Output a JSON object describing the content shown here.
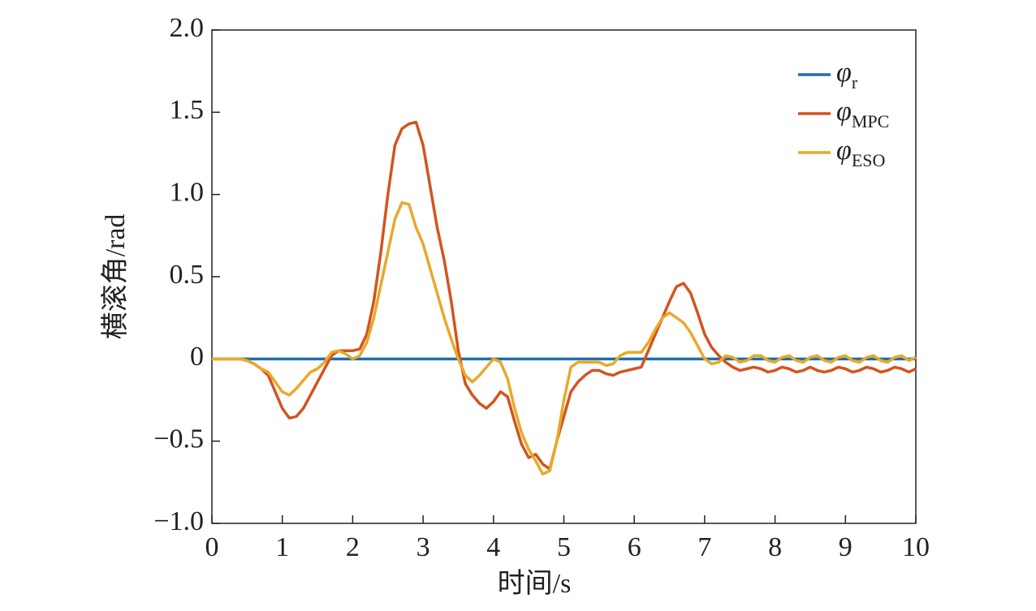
{
  "chart_data": {
    "type": "line",
    "xlabel": "时间/s",
    "ylabel": "横滚角/rad",
    "x": [
      0,
      0.1,
      0.2,
      0.3,
      0.4,
      0.5,
      0.6,
      0.7,
      0.8,
      0.9,
      1,
      1.1,
      1.2,
      1.3,
      1.4,
      1.5,
      1.6,
      1.7,
      1.8,
      1.9,
      2,
      2.1,
      2.2,
      2.3,
      2.4,
      2.5,
      2.6,
      2.7,
      2.8,
      2.9,
      3,
      3.1,
      3.2,
      3.3,
      3.4,
      3.5,
      3.6,
      3.7,
      3.8,
      3.9,
      4,
      4.1,
      4.2,
      4.3,
      4.4,
      4.5,
      4.6,
      4.7,
      4.8,
      4.9,
      5,
      5.1,
      5.2,
      5.3,
      5.4,
      5.5,
      5.6,
      5.7,
      5.8,
      5.9,
      6,
      6.1,
      6.2,
      6.3,
      6.4,
      6.5,
      6.6,
      6.7,
      6.8,
      6.9,
      7,
      7.1,
      7.2,
      7.3,
      7.4,
      7.5,
      7.6,
      7.7,
      7.8,
      7.9,
      8,
      8.1,
      8.2,
      8.3,
      8.4,
      8.5,
      8.6,
      8.7,
      8.8,
      8.9,
      9,
      9.1,
      9.2,
      9.3,
      9.4,
      9.5,
      9.6,
      9.7,
      9.8,
      9.9,
      10
    ],
    "series": [
      {
        "name": "φr",
        "color": "#1f6fb0",
        "values": [
          0,
          0,
          0,
          0,
          0,
          0,
          0,
          0,
          0,
          0,
          0,
          0,
          0,
          0,
          0,
          0,
          0,
          0,
          0,
          0,
          0,
          0,
          0,
          0,
          0,
          0,
          0,
          0,
          0,
          0,
          0,
          0,
          0,
          0,
          0,
          0,
          0,
          0,
          0,
          0,
          0,
          0,
          0,
          0,
          0,
          0,
          0,
          0,
          0,
          0,
          0,
          0,
          0,
          0,
          0,
          0,
          0,
          0,
          0,
          0,
          0,
          0,
          0,
          0,
          0,
          0,
          0,
          0,
          0,
          0,
          0,
          0,
          0,
          0,
          0,
          0,
          0,
          0,
          0,
          0,
          0,
          0,
          0,
          0,
          0,
          0,
          0,
          0,
          0,
          0,
          0,
          0,
          0,
          0,
          0,
          0,
          0,
          0,
          0,
          0,
          0
        ]
      },
      {
        "name": "φMPC",
        "color": "#d3541f",
        "values": [
          0,
          0,
          0,
          0,
          0,
          -0.01,
          -0.03,
          -0.06,
          -0.1,
          -0.2,
          -0.3,
          -0.36,
          -0.35,
          -0.3,
          -0.22,
          -0.14,
          -0.06,
          0.02,
          0.05,
          0.05,
          0.05,
          0.06,
          0.15,
          0.35,
          0.65,
          1.0,
          1.3,
          1.4,
          1.43,
          1.44,
          1.3,
          1.05,
          0.8,
          0.6,
          0.35,
          0.05,
          -0.15,
          -0.22,
          -0.27,
          -0.3,
          -0.26,
          -0.2,
          -0.23,
          -0.38,
          -0.52,
          -0.6,
          -0.58,
          -0.64,
          -0.67,
          -0.5,
          -0.35,
          -0.2,
          -0.14,
          -0.1,
          -0.07,
          -0.07,
          -0.09,
          -0.1,
          -0.08,
          -0.07,
          -0.06,
          -0.05,
          0.05,
          0.15,
          0.25,
          0.35,
          0.44,
          0.46,
          0.4,
          0.28,
          0.15,
          0.07,
          0.02,
          -0.02,
          -0.05,
          -0.07,
          -0.06,
          -0.05,
          -0.06,
          -0.08,
          -0.07,
          -0.05,
          -0.06,
          -0.08,
          -0.07,
          -0.05,
          -0.07,
          -0.08,
          -0.07,
          -0.05,
          -0.06,
          -0.08,
          -0.07,
          -0.05,
          -0.06,
          -0.08,
          -0.07,
          -0.05,
          -0.06,
          -0.08,
          -0.06
        ]
      },
      {
        "name": "φESO",
        "color": "#e8a92a",
        "values": [
          0,
          0,
          0,
          0,
          0,
          -0.01,
          -0.03,
          -0.06,
          -0.08,
          -0.14,
          -0.2,
          -0.22,
          -0.18,
          -0.13,
          -0.08,
          -0.06,
          -0.02,
          0.04,
          0.05,
          0.03,
          0.0,
          0.02,
          0.1,
          0.25,
          0.45,
          0.65,
          0.85,
          0.95,
          0.94,
          0.8,
          0.7,
          0.55,
          0.4,
          0.25,
          0.12,
          0.0,
          -0.1,
          -0.14,
          -0.1,
          -0.05,
          0.0,
          -0.02,
          -0.12,
          -0.3,
          -0.45,
          -0.55,
          -0.62,
          -0.7,
          -0.68,
          -0.5,
          -0.25,
          -0.05,
          -0.02,
          -0.02,
          -0.02,
          -0.02,
          -0.04,
          -0.03,
          0.02,
          0.04,
          0.04,
          0.04,
          0.1,
          0.18,
          0.25,
          0.28,
          0.25,
          0.22,
          0.16,
          0.08,
          0.0,
          -0.03,
          -0.02,
          0.02,
          0.01,
          -0.02,
          -0.01,
          0.02,
          0.02,
          -0.01,
          -0.02,
          0.01,
          0.02,
          -0.01,
          -0.02,
          0.01,
          0.02,
          -0.01,
          -0.02,
          0.01,
          0.02,
          -0.01,
          -0.02,
          0.01,
          0.02,
          -0.01,
          -0.02,
          0.01,
          0.02,
          -0.01,
          0.01
        ]
      }
    ],
    "xlim": [
      0,
      10
    ],
    "xticks": [
      0,
      1,
      2,
      3,
      4,
      5,
      6,
      7,
      8,
      9,
      10
    ],
    "ylim": [
      -1,
      2
    ],
    "yticks": [
      {
        "value": -1,
        "label": "−1.0"
      },
      {
        "value": -0.5,
        "label": "−0.5"
      },
      0,
      0.5,
      {
        "value": 1,
        "label": "1.0"
      },
      1.5,
      {
        "value": 2,
        "label": "2.0"
      }
    ],
    "legend": "upper right"
  }
}
